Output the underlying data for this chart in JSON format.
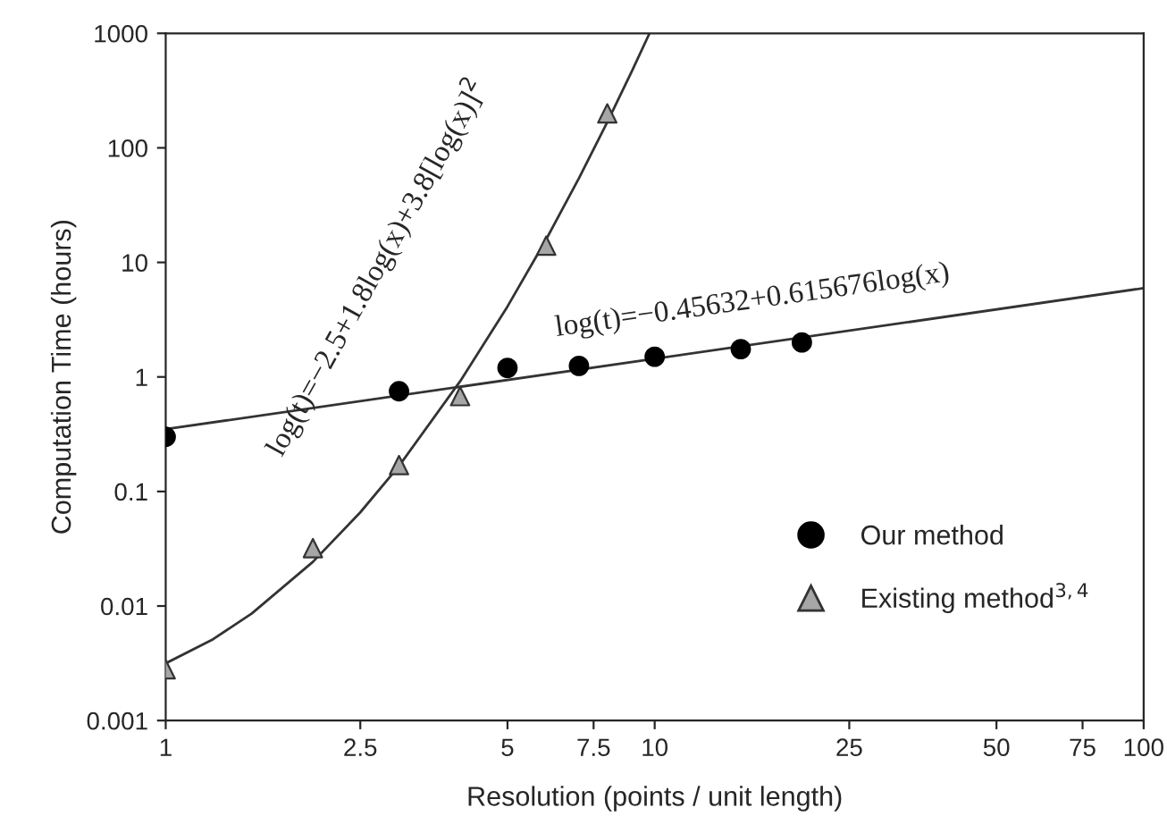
{
  "chart_data": {
    "type": "scatter",
    "xlabel": "Resolution (points / unit length)",
    "ylabel": "Computation Time (hours)",
    "log": "xy",
    "xlim": [
      1,
      100
    ],
    "ylim": [
      0.001,
      1000
    ],
    "xticks": [
      1,
      2.5,
      5,
      7.5,
      10,
      25,
      50,
      75,
      100
    ],
    "yticks": [
      0.001,
      0.01,
      0.1,
      1,
      10,
      100,
      1000
    ],
    "grid": false,
    "legend": "bottom right",
    "series": [
      {
        "name": "Our method",
        "marker": "circle",
        "color": "#000000",
        "x": [
          1,
          3,
          5,
          7,
          10,
          15,
          20
        ],
        "values": [
          0.3,
          0.75,
          1.2,
          1.25,
          1.5,
          1.75,
          2.0
        ]
      },
      {
        "name": "Existing method$^{3,4}$",
        "marker": "triangle",
        "color": "#a6a6a6",
        "x": [
          1,
          2,
          3,
          4,
          6,
          8
        ],
        "values": [
          0.0028,
          0.032,
          0.17,
          0.68,
          14,
          200
        ]
      },
      {
        "type": "line",
        "color": "#333333",
        "x": [
          1,
          10,
          100
        ],
        "values": [
          0.35,
          1.44,
          5.96
        ]
      },
      {
        "type": "line",
        "color": "#333333",
        "x": [
          1,
          1.25,
          1.5,
          2,
          2.5,
          3,
          4,
          5,
          6,
          7,
          8,
          9,
          9.76
        ],
        "values": [
          0.00316,
          0.00513,
          0.00861,
          0.0243,
          0.0657,
          0.167,
          0.915,
          4.12,
          15.9,
          54.3,
          168,
          476,
          1000
        ]
      }
    ],
    "annotations": [
      "log(t)=−2.5+1.8log(x)+3.8[log(x)]$^{2}$",
      "log(t)=−0.45632+0.615676log(x)"
    ]
  }
}
